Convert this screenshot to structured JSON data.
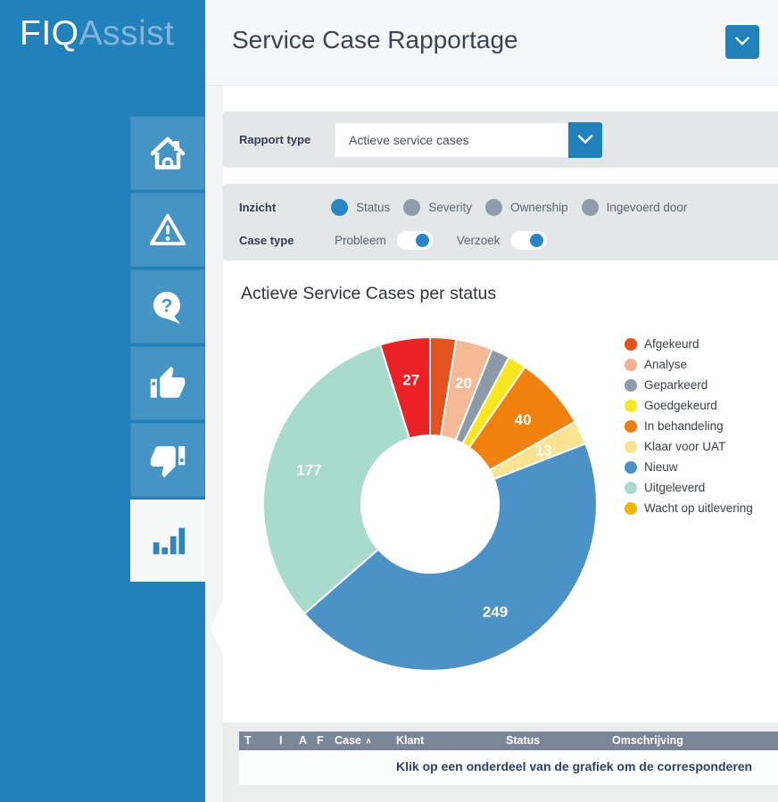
{
  "app": {
    "logo_primary": "FIQ",
    "logo_secondary": "Assist"
  },
  "header": {
    "title": "Service Case Rapportage"
  },
  "sidebar": {
    "items": [
      {
        "icon": "home",
        "active": false
      },
      {
        "icon": "alert-triangle",
        "active": false
      },
      {
        "icon": "question-bubble",
        "active": false
      },
      {
        "icon": "thumbs-up",
        "active": false
      },
      {
        "icon": "thumbs-down",
        "active": false
      },
      {
        "icon": "bar-chart",
        "active": true
      }
    ]
  },
  "filters": {
    "rapport_type": {
      "label": "Rapport type",
      "value": "Actieve service cases"
    },
    "inzicht": {
      "label": "Inzicht",
      "options": [
        {
          "label": "Status",
          "selected": true
        },
        {
          "label": "Severity",
          "selected": false
        },
        {
          "label": "Ownership",
          "selected": false
        },
        {
          "label": "Ingevoerd door",
          "selected": false
        }
      ]
    },
    "case_type": {
      "label": "Case type",
      "toggles": [
        {
          "label": "Probleem",
          "on": true
        },
        {
          "label": "Verzoek",
          "on": true
        }
      ]
    }
  },
  "chart_data": {
    "type": "pie",
    "donut": true,
    "title": "Actieve Service Cases per status",
    "legend_position": "right",
    "slices": [
      {
        "label": "Afgekeurd",
        "value": 14,
        "color": "#e4521d",
        "label_visible": false
      },
      {
        "label": "Analyse",
        "value": 20,
        "color": "#f4ba95",
        "label_visible": true
      },
      {
        "label": "Geparkeerd",
        "value": 10,
        "color": "#8c9aa9",
        "label_visible": false
      },
      {
        "label": "Goedgekeurd",
        "value": 10,
        "color": "#f8e71f",
        "label_visible": false
      },
      {
        "label": "In behandeling",
        "value": 40,
        "color": "#f0810d",
        "label_visible": true
      },
      {
        "label": "Klaar voor UAT",
        "value": 13,
        "color": "#fbe491",
        "label_visible": true
      },
      {
        "label": "Nieuw",
        "value": 249,
        "color": "#4b92c6",
        "label_visible": true
      },
      {
        "label": "Uitgeleverd",
        "value": 177,
        "color": "#a9dbcc",
        "label_visible": true
      },
      {
        "label": "Wacht op uitlevering",
        "value": 27,
        "color": "#eb2125",
        "label_visible": true
      }
    ],
    "legend": [
      {
        "label": "Afgekeurd",
        "color": "#e8511c"
      },
      {
        "label": "Analyse",
        "color": "#f2b290"
      },
      {
        "label": "Geparkeerd",
        "color": "#8c9aa9"
      },
      {
        "label": "Goedgekeurd",
        "color": "#f6e824"
      },
      {
        "label": "In behandeling",
        "color": "#f07d12"
      },
      {
        "label": "Klaar voor UAT",
        "color": "#f9e38d"
      },
      {
        "label": "Nieuw",
        "color": "#4a90c4"
      },
      {
        "label": "Uitgeleverd",
        "color": "#a9dbcd"
      },
      {
        "label": "Wacht op uitlevering",
        "color": "#f2b607"
      }
    ]
  },
  "table": {
    "columns": [
      "T",
      "I",
      "A",
      "F",
      "Case",
      "Klant",
      "Status",
      "Omschrijving"
    ],
    "sort_column": "Case",
    "sort_direction": "asc",
    "message": "Klik op een onderdeel van de grafiek om de corresponderen"
  },
  "colors": {
    "sidebar": "#2181bb",
    "tile": "#4594c6",
    "accent": "#2886c4",
    "band": "#e4e7e8",
    "table_header": "#7b8798"
  }
}
